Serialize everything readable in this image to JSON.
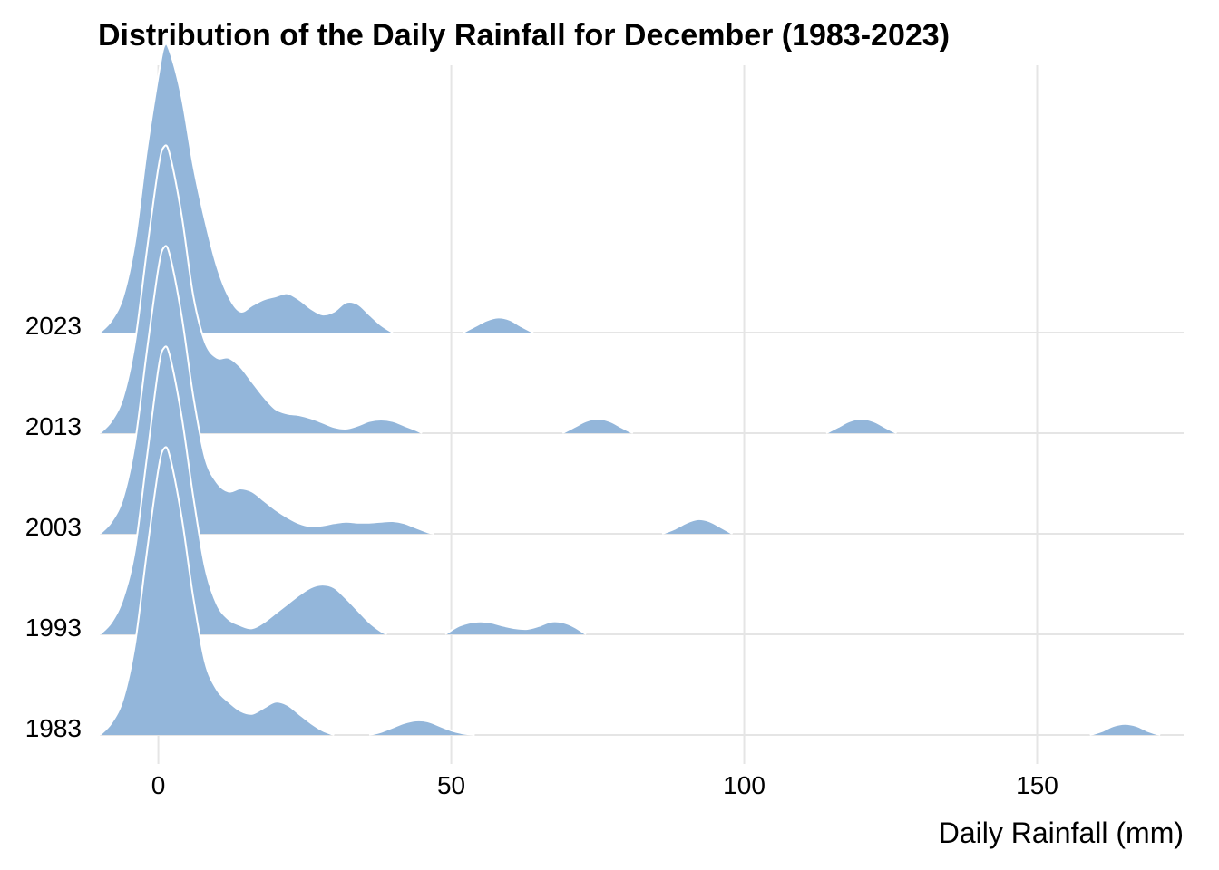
{
  "chart_data": {
    "type": "ridgeline",
    "title": "Distribution of the Daily Rainfall for December (1983-2023)",
    "xlabel": "Daily Rainfall (mm)",
    "ylabel": "",
    "xlim": [
      -10,
      175
    ],
    "x_ticks": [
      0,
      50,
      100,
      150
    ],
    "x_tick_labels": [
      "0",
      "50",
      "100",
      "150"
    ],
    "grid": true,
    "fill_color": "#93b6da",
    "outline_color": "#ffffff",
    "categories": [
      "1983",
      "1993",
      "2003",
      "2013",
      "2023"
    ],
    "series": [
      {
        "name": "1983",
        "segments": [
          {
            "points": [
              [
                -10,
                0
              ],
              [
                -8,
                0.04
              ],
              [
                -6,
                0.12
              ],
              [
                -4,
                0.3
              ],
              [
                -2,
                0.6
              ],
              [
                0,
                0.88
              ],
              [
                1,
                0.95
              ],
              [
                2,
                0.92
              ],
              [
                4,
                0.72
              ],
              [
                6,
                0.45
              ],
              [
                8,
                0.24
              ],
              [
                10,
                0.15
              ],
              [
                12,
                0.11
              ],
              [
                14,
                0.08
              ],
              [
                16,
                0.07
              ],
              [
                18,
                0.09
              ],
              [
                20,
                0.11
              ],
              [
                22,
                0.1
              ],
              [
                24,
                0.07
              ],
              [
                26,
                0.04
              ],
              [
                28,
                0.015
              ],
              [
                30,
                0
              ]
            ]
          },
          {
            "points": [
              [
                36,
                0
              ],
              [
                38,
                0.01
              ],
              [
                40,
                0.025
              ],
              [
                42,
                0.04
              ],
              [
                44,
                0.048
              ],
              [
                46,
                0.045
              ],
              [
                48,
                0.03
              ],
              [
                50,
                0.015
              ],
              [
                52,
                0.005
              ],
              [
                54,
                0
              ]
            ]
          },
          {
            "points": [
              [
                159,
                0
              ],
              [
                161,
                0.012
              ],
              [
                163,
                0.03
              ],
              [
                165,
                0.037
              ],
              [
                167,
                0.03
              ],
              [
                169,
                0.012
              ],
              [
                171,
                0
              ]
            ]
          }
        ]
      },
      {
        "name": "1993",
        "segments": [
          {
            "points": [
              [
                -10,
                0
              ],
              [
                -8,
                0.04
              ],
              [
                -6,
                0.12
              ],
              [
                -4,
                0.28
              ],
              [
                -2,
                0.58
              ],
              [
                0,
                0.88
              ],
              [
                1,
                0.95
              ],
              [
                2,
                0.92
              ],
              [
                4,
                0.72
              ],
              [
                6,
                0.45
              ],
              [
                8,
                0.22
              ],
              [
                10,
                0.1
              ],
              [
                12,
                0.05
              ],
              [
                14,
                0.03
              ],
              [
                16,
                0.02
              ],
              [
                18,
                0.04
              ],
              [
                20,
                0.07
              ],
              [
                22,
                0.1
              ],
              [
                24,
                0.13
              ],
              [
                26,
                0.155
              ],
              [
                28,
                0.165
              ],
              [
                30,
                0.155
              ],
              [
                32,
                0.12
              ],
              [
                34,
                0.08
              ],
              [
                36,
                0.04
              ],
              [
                38,
                0.01
              ],
              [
                39,
                0
              ]
            ]
          },
          {
            "points": [
              [
                49,
                0
              ],
              [
                51,
                0.025
              ],
              [
                53,
                0.038
              ],
              [
                55,
                0.043
              ],
              [
                57,
                0.038
              ],
              [
                59,
                0.028
              ],
              [
                61,
                0.02
              ],
              [
                63,
                0.018
              ],
              [
                65,
                0.028
              ],
              [
                67,
                0.042
              ],
              [
                69,
                0.04
              ],
              [
                71,
                0.025
              ],
              [
                73,
                0
              ]
            ]
          }
        ]
      },
      {
        "name": "2003",
        "segments": [
          {
            "points": [
              [
                -10,
                0
              ],
              [
                -8,
                0.04
              ],
              [
                -6,
                0.12
              ],
              [
                -4,
                0.3
              ],
              [
                -2,
                0.6
              ],
              [
                0,
                0.88
              ],
              [
                1,
                0.95
              ],
              [
                2,
                0.92
              ],
              [
                4,
                0.72
              ],
              [
                6,
                0.45
              ],
              [
                8,
                0.25
              ],
              [
                10,
                0.17
              ],
              [
                12,
                0.14
              ],
              [
                14,
                0.15
              ],
              [
                16,
                0.14
              ],
              [
                18,
                0.11
              ],
              [
                20,
                0.08
              ],
              [
                22,
                0.055
              ],
              [
                24,
                0.035
              ],
              [
                26,
                0.025
              ],
              [
                28,
                0.028
              ],
              [
                30,
                0.035
              ],
              [
                32,
                0.04
              ],
              [
                34,
                0.037
              ],
              [
                36,
                0.037
              ],
              [
                38,
                0.04
              ],
              [
                40,
                0.042
              ],
              [
                42,
                0.035
              ],
              [
                44,
                0.02
              ],
              [
                46,
                0.005
              ],
              [
                47,
                0
              ]
            ]
          },
          {
            "points": [
              [
                86,
                0
              ],
              [
                88,
                0.015
              ],
              [
                90,
                0.035
              ],
              [
                92,
                0.048
              ],
              [
                94,
                0.042
              ],
              [
                96,
                0.022
              ],
              [
                98,
                0
              ]
            ]
          }
        ]
      },
      {
        "name": "2013",
        "segments": [
          {
            "points": [
              [
                -10,
                0
              ],
              [
                -8,
                0.04
              ],
              [
                -6,
                0.12
              ],
              [
                -4,
                0.3
              ],
              [
                -2,
                0.6
              ],
              [
                0,
                0.88
              ],
              [
                1,
                0.95
              ],
              [
                2,
                0.92
              ],
              [
                4,
                0.72
              ],
              [
                6,
                0.45
              ],
              [
                8,
                0.3
              ],
              [
                10,
                0.25
              ],
              [
                12,
                0.25
              ],
              [
                14,
                0.22
              ],
              [
                16,
                0.17
              ],
              [
                18,
                0.12
              ],
              [
                20,
                0.08
              ],
              [
                22,
                0.065
              ],
              [
                24,
                0.06
              ],
              [
                26,
                0.05
              ],
              [
                28,
                0.035
              ],
              [
                30,
                0.02
              ],
              [
                32,
                0.015
              ],
              [
                34,
                0.025
              ],
              [
                36,
                0.04
              ],
              [
                38,
                0.045
              ],
              [
                40,
                0.04
              ],
              [
                42,
                0.025
              ],
              [
                44,
                0.01
              ],
              [
                45,
                0
              ]
            ]
          },
          {
            "points": [
              [
                69,
                0
              ],
              [
                71,
                0.02
              ],
              [
                73,
                0.04
              ],
              [
                75,
                0.048
              ],
              [
                77,
                0.04
              ],
              [
                79,
                0.02
              ],
              [
                81,
                0
              ]
            ]
          },
          {
            "points": [
              [
                114,
                0
              ],
              [
                116,
                0.02
              ],
              [
                118,
                0.04
              ],
              [
                120,
                0.048
              ],
              [
                122,
                0.04
              ],
              [
                124,
                0.02
              ],
              [
                126,
                0
              ]
            ]
          }
        ]
      },
      {
        "name": "2023",
        "segments": [
          {
            "points": [
              [
                -10,
                0
              ],
              [
                -8,
                0.04
              ],
              [
                -6,
                0.12
              ],
              [
                -4,
                0.3
              ],
              [
                -2,
                0.6
              ],
              [
                0,
                0.85
              ],
              [
                1,
                0.95
              ],
              [
                2,
                0.93
              ],
              [
                4,
                0.78
              ],
              [
                6,
                0.55
              ],
              [
                8,
                0.37
              ],
              [
                10,
                0.22
              ],
              [
                12,
                0.12
              ],
              [
                14,
                0.07
              ],
              [
                16,
                0.09
              ],
              [
                18,
                0.11
              ],
              [
                20,
                0.12
              ],
              [
                22,
                0.13
              ],
              [
                24,
                0.11
              ],
              [
                26,
                0.08
              ],
              [
                28,
                0.06
              ],
              [
                30,
                0.07
              ],
              [
                32,
                0.1
              ],
              [
                34,
                0.095
              ],
              [
                36,
                0.06
              ],
              [
                38,
                0.025
              ],
              [
                40,
                0
              ]
            ]
          },
          {
            "points": [
              [
                52,
                0
              ],
              [
                54,
                0.02
              ],
              [
                56,
                0.04
              ],
              [
                58,
                0.05
              ],
              [
                60,
                0.042
              ],
              [
                62,
                0.02
              ],
              [
                64,
                0
              ]
            ]
          }
        ]
      }
    ]
  }
}
